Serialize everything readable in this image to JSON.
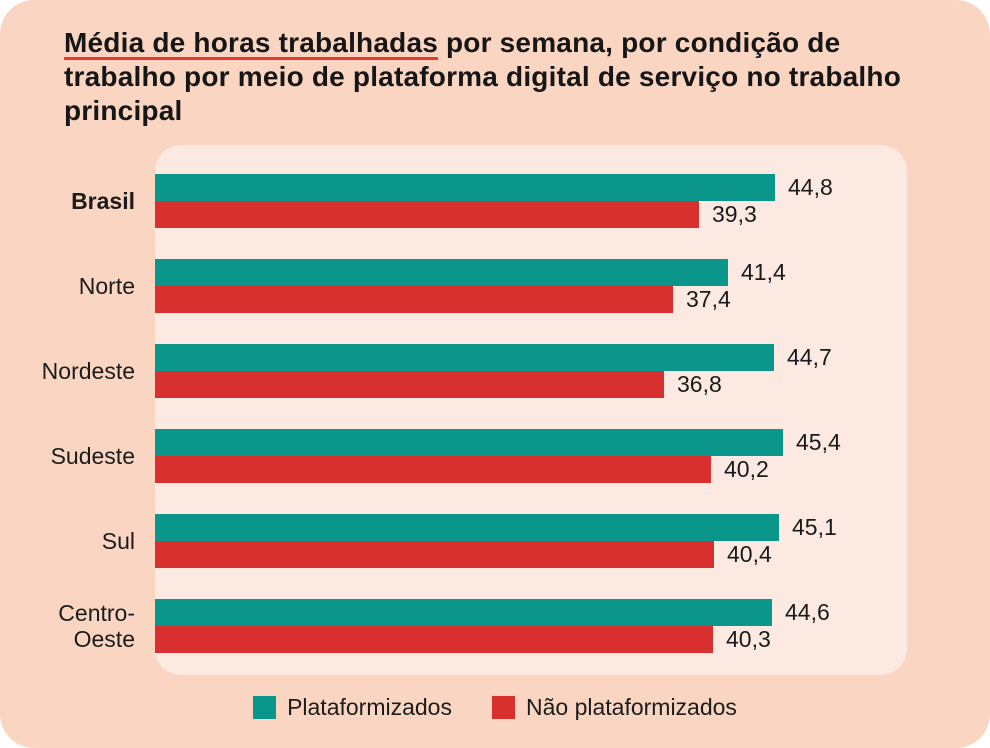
{
  "title": {
    "underlined": "Média de horas trabalhadas",
    "rest": " por semana, por condição de trabalho por meio de plataforma digital de serviço no trabalho principal"
  },
  "colors": {
    "page_background": "#f9d5c2",
    "panel_background": "#fce9e1",
    "teal": "#0b968c",
    "red": "#d8302f",
    "title_underline": "#e7392b",
    "text": "#1a1a1a"
  },
  "legend": {
    "items": [
      {
        "label": "Plataformizados",
        "color": "#0b968c"
      },
      {
        "label": "Não plataformizados",
        "color": "#d8302f"
      }
    ]
  },
  "chart_data": {
    "type": "bar",
    "orientation": "horizontal",
    "title": "Média de horas trabalhadas por semana, por condição de trabalho por meio de plataforma digital de serviço no trabalho principal",
    "categories": [
      "Brasil",
      "Norte",
      "Nordeste",
      "Sudeste",
      "Sul",
      "Centro-Oeste"
    ],
    "emphasized_category": "Brasil",
    "series": [
      {
        "name": "Plataformizados",
        "color": "#0b968c",
        "values": [
          44.8,
          41.4,
          44.7,
          45.4,
          45.1,
          44.6
        ]
      },
      {
        "name": "Não plataformizados",
        "color": "#d8302f",
        "values": [
          39.3,
          37.4,
          36.8,
          40.2,
          40.4,
          40.3
        ]
      }
    ],
    "value_labels": [
      [
        "44,8",
        "41,4",
        "44,7",
        "45,4",
        "45,1",
        "44,6"
      ],
      [
        "39,3",
        "37,4",
        "36,8",
        "40,2",
        "40,4",
        "40,3"
      ]
    ],
    "xlim": [
      0,
      46
    ],
    "grid": false,
    "axis_ticks": "none",
    "legend_position": "bottom"
  }
}
